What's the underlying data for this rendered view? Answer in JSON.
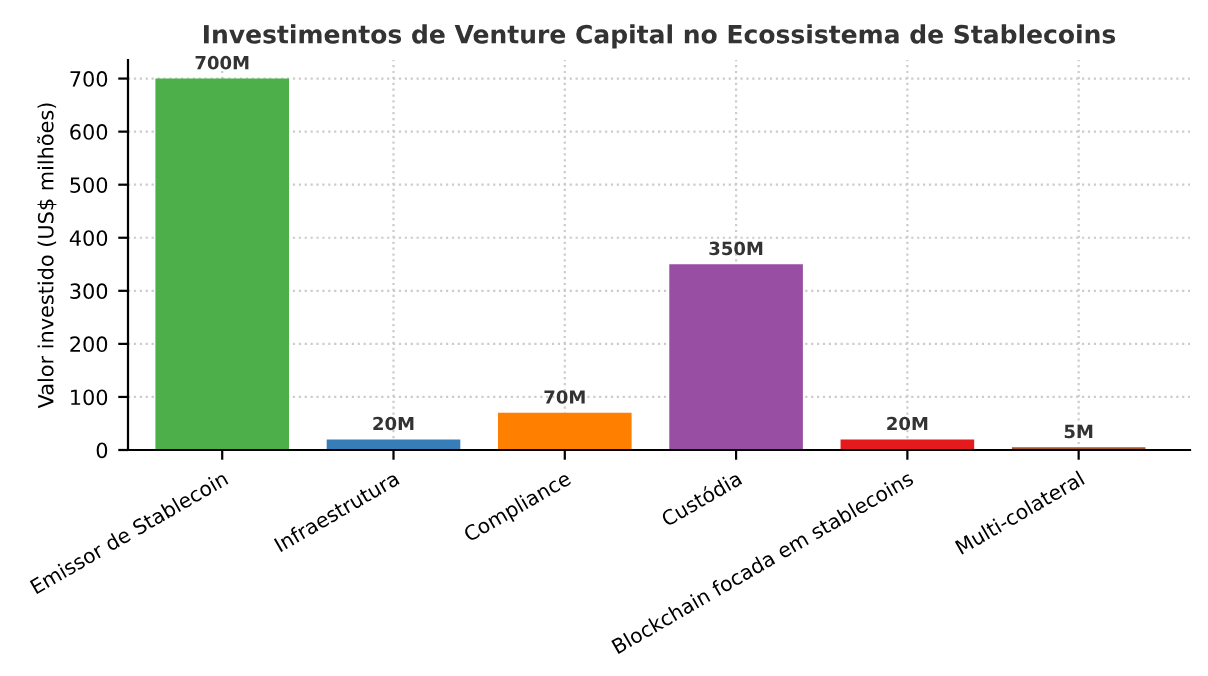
{
  "chart_data": {
    "type": "bar",
    "title": "Investimentos de Venture Capital no Ecossistema de Stablecoins",
    "ylabel": "Valor investido (US$ milhões)",
    "categories": [
      "Emissor de Stablecoin",
      "Infraestrutura",
      "Compliance",
      "Custódia",
      "Blockchain focada em stablecoins",
      "Multi-colateral"
    ],
    "values": [
      700,
      20,
      70,
      350,
      20,
      5
    ],
    "colors": [
      "#4daf4a",
      "#377eb8",
      "#ff7f00",
      "#984ea3",
      "#e41a1c",
      "#a65628"
    ],
    "value_labels": [
      "700M",
      "20M",
      "70M",
      "350M",
      "20M",
      "5M"
    ],
    "ylim": [
      0,
      735
    ],
    "yticks": [
      0,
      100,
      200,
      300,
      400,
      500,
      600,
      700
    ],
    "grid": true
  }
}
